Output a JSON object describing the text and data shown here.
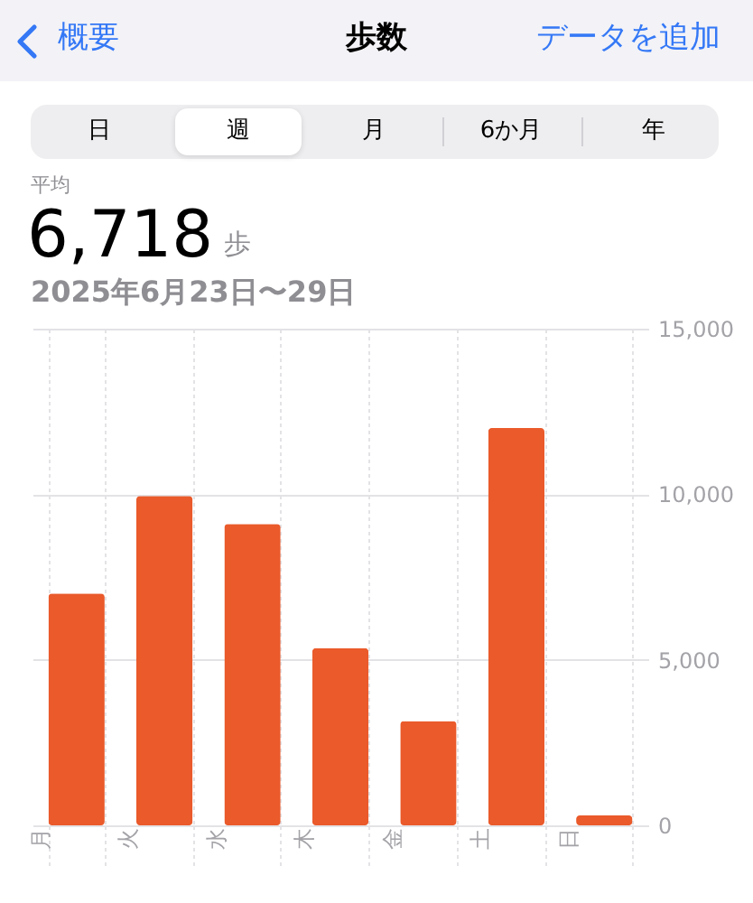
{
  "chart_data": {
    "type": "bar",
    "title": "歩数",
    "subtitle": "2025年6月23日〜29日",
    "annotations": [
      "概要",
      "データを追加",
      "日",
      "週",
      "月",
      "6か月",
      "年",
      "平均",
      "6,718",
      "歩"
    ],
    "categories": [
      "月",
      "火",
      "水",
      "木",
      "金",
      "土",
      "日"
    ],
    "values": [
      7000,
      9950,
      9100,
      5350,
      3150,
      12000,
      300
    ],
    "color": "#ea5a2b",
    "ylim": [
      0,
      15000
    ],
    "yticks": [
      0,
      {
        "value": 5000,
        "label": "5,000"
      },
      {
        "value": 10000,
        "label": "10,000"
      },
      {
        "value": 15000,
        "label": "15,000"
      }
    ],
    "grid": true
  }
}
